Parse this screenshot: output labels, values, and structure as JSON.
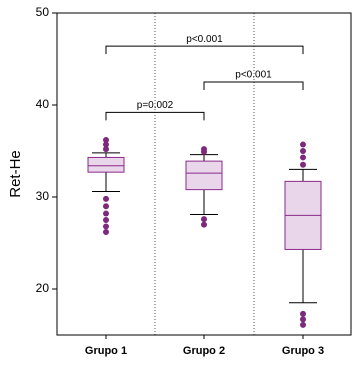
{
  "chart_data": {
    "type": "box",
    "ylabel": "Ret-He",
    "categories": [
      "Grupo 1",
      "Grupo 2",
      "Grupo 3"
    ],
    "box_color": "#8b2a8b",
    "box_fill": "#ead6ea",
    "outlier_color": "#7d2a7d",
    "boxes": [
      {
        "min": 30.6,
        "q1": 32.7,
        "median": 33.4,
        "q3": 34.3,
        "max": 34.8,
        "outliers": [
          36.2,
          35.7,
          35.2,
          29.8,
          29.0,
          28.2,
          27.5,
          26.8,
          26.2
        ]
      },
      {
        "min": 28.1,
        "q1": 30.8,
        "median": 32.6,
        "q3": 33.9,
        "max": 34.6,
        "outliers": [
          35.2,
          34.9,
          27.6,
          27.0
        ]
      },
      {
        "min": 18.5,
        "q1": 24.3,
        "median": 28.0,
        "q3": 31.7,
        "max": 33.0,
        "outliers": [
          35.7,
          35.0,
          34.3,
          33.5,
          17.3,
          16.7,
          16.1
        ]
      }
    ],
    "annotations": [
      {
        "label": "p<0.001",
        "between": [
          "Grupo 1",
          "Grupo 3"
        ],
        "y": 46.4
      },
      {
        "label": "p<0.001",
        "between": [
          "Grupo 2",
          "Grupo 3"
        ],
        "y": 42.5
      },
      {
        "label": "p=0.002",
        "between": [
          "Grupo 1",
          "Grupo 2"
        ],
        "y": 39.2
      }
    ],
    "ylim": [
      15,
      50
    ],
    "yticks": [
      20,
      30,
      40,
      50
    ]
  }
}
